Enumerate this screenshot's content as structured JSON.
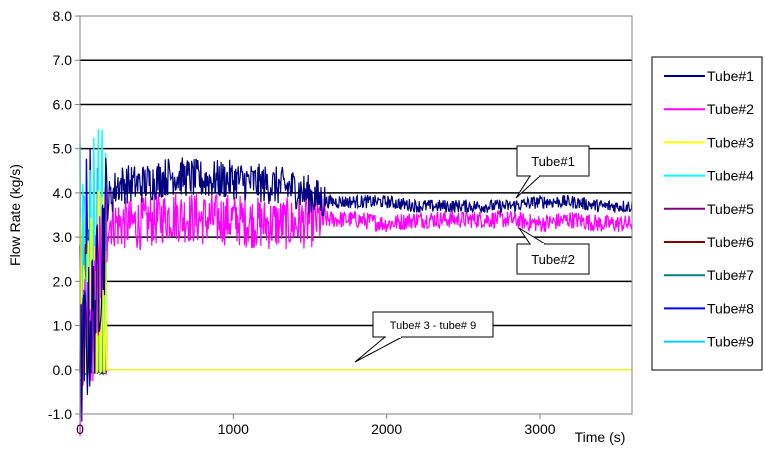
{
  "chart_data": {
    "type": "line",
    "title": "",
    "xlabel": "Time (s)",
    "ylabel": "Flow Rate (kg/s)",
    "xlim": [
      0,
      3600
    ],
    "ylim": [
      -1.0,
      8.0
    ],
    "x_ticks": [
      "0",
      "1000",
      "2000",
      "3000"
    ],
    "y_ticks": [
      "-1.0",
      "0.0",
      "1.0",
      "2.0",
      "3.0",
      "4.0",
      "5.0",
      "6.0",
      "7.0",
      "8.0"
    ],
    "grid": "horizontal",
    "legend_position": "right",
    "series": [
      {
        "name": "Tube#1",
        "color": "#000080",
        "x": [
          0,
          100,
          180,
          250,
          400,
          600,
          800,
          1000,
          1200,
          1400,
          1600,
          1800,
          2000,
          2200,
          2400,
          2600,
          2800,
          3000,
          3200,
          3400,
          3600
        ],
        "y": [
          0,
          1.5,
          3.8,
          4.2,
          4.2,
          4.4,
          4.3,
          4.3,
          4.2,
          4.1,
          3.8,
          3.8,
          3.8,
          3.7,
          3.7,
          3.7,
          3.7,
          3.8,
          3.8,
          3.7,
          3.7
        ]
      },
      {
        "name": "Tube#2",
        "color": "#ff00ff",
        "x": [
          0,
          100,
          180,
          250,
          400,
          600,
          800,
          1000,
          1200,
          1400,
          1600,
          1800,
          2000,
          2200,
          2400,
          2600,
          2800,
          3000,
          3200,
          3400,
          3600
        ],
        "y": [
          0,
          1.5,
          3.4,
          3.3,
          3.3,
          3.5,
          3.4,
          3.4,
          3.3,
          3.3,
          3.4,
          3.4,
          3.3,
          3.4,
          3.4,
          3.4,
          3.4,
          3.3,
          3.4,
          3.3,
          3.3
        ]
      },
      {
        "name": "Tube#3",
        "color": "#ffff00",
        "x": [
          0,
          60,
          120,
          180,
          250,
          3600
        ],
        "y": [
          0,
          4.2,
          0,
          0,
          0,
          0
        ]
      },
      {
        "name": "Tube#4",
        "color": "#00ffff",
        "x": [
          0,
          60,
          120,
          180,
          250,
          3600
        ],
        "y": [
          0,
          5.5,
          0,
          0,
          0,
          0
        ]
      },
      {
        "name": "Tube#5",
        "color": "#800080",
        "x": [
          0,
          60,
          120,
          180,
          250,
          3600
        ],
        "y": [
          0,
          3.0,
          0,
          0,
          0,
          0
        ]
      },
      {
        "name": "Tube#6",
        "color": "#800000",
        "x": [
          0,
          60,
          120,
          180,
          250,
          3600
        ],
        "y": [
          0,
          3.1,
          0,
          0,
          0,
          0
        ]
      },
      {
        "name": "Tube#7",
        "color": "#008080",
        "x": [
          0,
          60,
          120,
          180,
          250,
          3600
        ],
        "y": [
          0,
          3.5,
          0,
          0,
          0,
          0
        ]
      },
      {
        "name": "Tube#8",
        "color": "#0000ff",
        "x": [
          0,
          60,
          120,
          180,
          250,
          3600
        ],
        "y": [
          0,
          5.6,
          0,
          0,
          0,
          0
        ]
      },
      {
        "name": "Tube#9",
        "color": "#00ccff",
        "x": [
          0,
          60,
          120,
          180,
          250,
          3600
        ],
        "y": [
          0,
          2.0,
          0,
          0,
          0,
          0
        ]
      }
    ],
    "annotations": [
      "Tube#1",
      "Tube#2",
      "Tube# 3 - tube# 9"
    ]
  }
}
